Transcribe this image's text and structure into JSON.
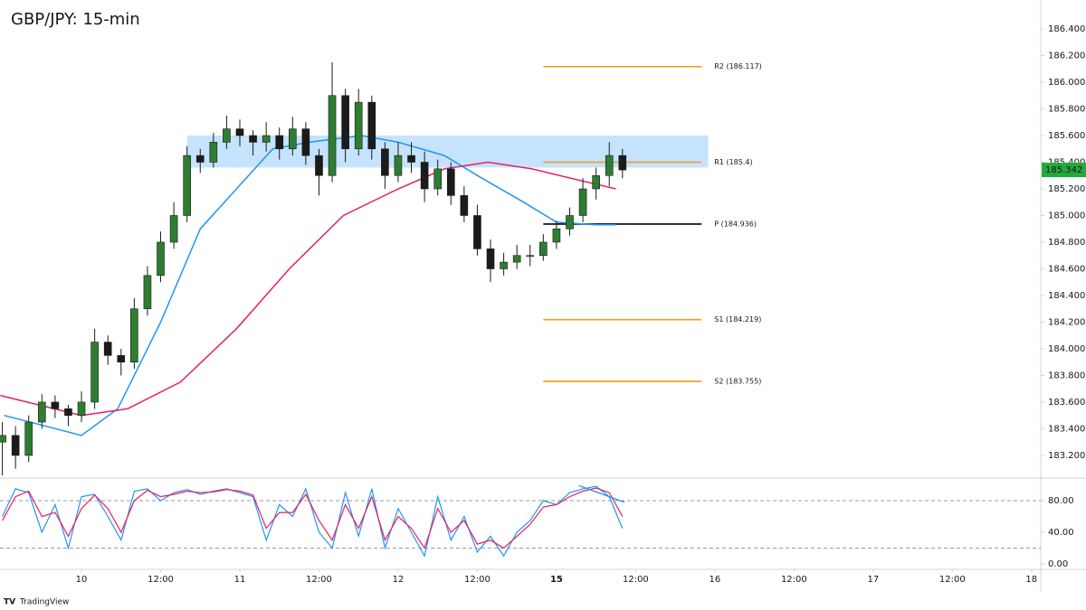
{
  "chart_data": [
    {
      "type": "candlestick",
      "title": "GBP/JPY: 15-min",
      "x": [
        -12,
        -10,
        -8,
        -6,
        -4,
        -2,
        0,
        2,
        4,
        6,
        8,
        10,
        12,
        14,
        16,
        18,
        20,
        22,
        24,
        26,
        28,
        30,
        32,
        34,
        36,
        38,
        40,
        42,
        44,
        46,
        48,
        50,
        52,
        54,
        56,
        58,
        60,
        62,
        64,
        66,
        68,
        70,
        72,
        74,
        76,
        78,
        80,
        82
      ],
      "open": [
        183.3,
        183.35,
        183.2,
        183.45,
        183.6,
        183.55,
        183.5,
        183.6,
        184.05,
        183.95,
        183.9,
        184.3,
        184.55,
        184.8,
        185.0,
        185.45,
        185.4,
        185.55,
        185.65,
        185.6,
        185.55,
        185.6,
        185.5,
        185.65,
        185.45,
        185.3,
        185.9,
        185.5,
        185.85,
        185.5,
        185.3,
        185.45,
        185.4,
        185.2,
        185.35,
        185.15,
        185.0,
        184.75,
        184.6,
        184.65,
        184.7,
        184.7,
        184.8,
        184.9,
        185.0,
        185.2,
        185.3,
        185.45
      ],
      "high": [
        183.45,
        183.42,
        183.5,
        183.66,
        183.65,
        183.58,
        183.68,
        184.15,
        184.1,
        184.0,
        184.38,
        184.62,
        184.88,
        185.1,
        185.52,
        185.5,
        185.62,
        185.75,
        185.72,
        185.64,
        185.7,
        185.66,
        185.74,
        185.7,
        185.5,
        186.15,
        185.95,
        185.95,
        185.9,
        185.55,
        185.55,
        185.55,
        185.48,
        185.42,
        185.4,
        185.22,
        185.08,
        184.82,
        184.72,
        184.78,
        184.78,
        184.86,
        184.96,
        185.06,
        185.28,
        185.36,
        185.55,
        185.5
      ],
      "low": [
        183.05,
        183.1,
        183.15,
        183.4,
        183.48,
        183.42,
        183.45,
        183.55,
        183.88,
        183.8,
        183.85,
        184.25,
        184.5,
        184.75,
        184.95,
        185.32,
        185.36,
        185.5,
        185.52,
        185.45,
        185.48,
        185.42,
        185.45,
        185.38,
        185.15,
        185.25,
        185.4,
        185.45,
        185.42,
        185.2,
        185.25,
        185.32,
        185.1,
        185.15,
        185.08,
        184.95,
        184.7,
        184.5,
        184.55,
        184.6,
        184.62,
        184.66,
        184.75,
        184.85,
        184.95,
        185.12,
        185.22,
        185.28
      ],
      "close": [
        183.35,
        183.2,
        183.45,
        183.6,
        183.55,
        183.5,
        183.6,
        184.05,
        183.95,
        183.9,
        184.3,
        184.55,
        184.8,
        185.0,
        185.45,
        185.4,
        185.55,
        185.65,
        185.6,
        185.55,
        185.6,
        185.5,
        185.65,
        185.45,
        185.3,
        185.9,
        185.5,
        185.85,
        185.5,
        185.3,
        185.45,
        185.4,
        185.2,
        185.35,
        185.15,
        185.0,
        184.75,
        184.6,
        184.65,
        184.7,
        184.7,
        184.8,
        184.9,
        185.0,
        185.2,
        185.3,
        185.45,
        185.342
      ],
      "up_color": "#2e7d32",
      "down_color": "#1b1b1b",
      "series": [
        {
          "color": "#2196f3",
          "x": [
            -11.7,
            0,
            5.5,
            12,
            18,
            23.5,
            29,
            34.5,
            42.5,
            48,
            55,
            60,
            67,
            72,
            78,
            81
          ],
          "values": [
            183.5,
            183.35,
            183.55,
            184.2,
            184.9,
            185.2,
            185.5,
            185.55,
            185.6,
            185.55,
            185.45,
            185.3,
            185.1,
            184.95,
            184.93,
            184.93
          ]
        },
        {
          "color": "#e91e63",
          "x": [
            -12.3,
            0,
            7,
            15,
            23.5,
            31.5,
            39.7,
            48,
            55,
            61.6,
            68.3,
            75,
            81
          ],
          "values": [
            183.65,
            183.5,
            183.55,
            183.75,
            184.15,
            184.6,
            185.0,
            185.2,
            185.35,
            185.4,
            185.35,
            185.27,
            185.2
          ]
        }
      ],
      "zone": {
        "from": 16,
        "to": 95,
        "low": 185.36,
        "high": 185.6,
        "color": "#bbdefb"
      },
      "pivots": [
        {
          "value": 186.117,
          "label": "R2 (186.117)",
          "color": "#f39c12",
          "from": 70,
          "to": 94
        },
        {
          "value": 185.4,
          "label": "R1 (185.4)",
          "color": "#f39c12",
          "from": 70,
          "to": 94
        },
        {
          "value": 184.936,
          "label": "P (184.936)",
          "color": "#000000",
          "from": 70,
          "to": 94
        },
        {
          "value": 184.219,
          "label": "S1 (184.219)",
          "color": "#f39c12",
          "from": 70,
          "to": 94
        },
        {
          "value": 183.755,
          "label": "S2 (183.755)",
          "color": "#f39c12",
          "from": 70,
          "to": 94
        }
      ],
      "last_price": 185.342,
      "last_color": "#22ab3b",
      "xlim": [
        -12.35,
        145.4
      ],
      "xticks": [
        {
          "value": 0,
          "label": "10"
        },
        {
          "value": 12,
          "label": "12:00"
        },
        {
          "value": 24,
          "label": "11"
        },
        {
          "value": 36,
          "label": "12:00"
        },
        {
          "value": 48,
          "label": "12"
        },
        {
          "value": 60,
          "label": "12:00"
        },
        {
          "value": 72,
          "label": "15"
        },
        {
          "value": 84,
          "label": "12:00"
        },
        {
          "value": 96,
          "label": "16"
        },
        {
          "value": 108,
          "label": "12:00"
        },
        {
          "value": 120,
          "label": "17"
        },
        {
          "value": 132,
          "label": "12:00"
        },
        {
          "value": 144,
          "label": "18"
        }
      ],
      "ylim": [
        183.037,
        186.617
      ],
      "yticks": [
        {
          "value": 183.2,
          "label": "183.200"
        },
        {
          "value": 183.4,
          "label": "183.400"
        },
        {
          "value": 183.6,
          "label": "183.600"
        },
        {
          "value": 183.8,
          "label": "183.800"
        },
        {
          "value": 184.0,
          "label": "184.000"
        },
        {
          "value": 184.2,
          "label": "184.200"
        },
        {
          "value": 184.4,
          "label": "184.400"
        },
        {
          "value": 184.6,
          "label": "184.600"
        },
        {
          "value": 184.8,
          "label": "184.800"
        },
        {
          "value": 185.0,
          "label": "185.000"
        },
        {
          "value": 185.2,
          "label": "185.200"
        },
        {
          "value": 185.4,
          "label": "185.400"
        },
        {
          "value": 185.6,
          "label": "185.600"
        },
        {
          "value": 185.8,
          "label": "185.800"
        },
        {
          "value": 186.0,
          "label": "186.000"
        },
        {
          "value": 186.2,
          "label": "186.200"
        },
        {
          "value": 186.4,
          "label": "186.400"
        }
      ]
    },
    {
      "type": "line",
      "x": [
        -12,
        -10,
        -8,
        -6,
        -4,
        -2,
        0,
        2,
        4,
        6,
        8,
        10,
        12,
        14,
        16,
        18,
        20,
        22,
        24,
        26,
        28,
        30,
        32,
        34,
        36,
        38,
        40,
        42,
        44,
        46,
        48,
        50,
        52,
        54,
        56,
        58,
        60,
        62,
        64,
        66,
        68,
        70,
        72,
        74,
        76,
        78,
        80,
        82
      ],
      "series": [
        {
          "color": "#2196f3",
          "values": [
            60,
            95,
            90,
            40,
            75,
            20,
            85,
            88,
            60,
            30,
            92,
            95,
            80,
            90,
            94,
            88,
            92,
            95,
            90,
            85,
            30,
            75,
            60,
            95,
            40,
            20,
            90,
            35,
            95,
            20,
            70,
            40,
            10,
            85,
            30,
            60,
            15,
            35,
            10,
            40,
            55,
            80,
            75,
            90,
            95,
            98,
            85,
            45
          ]
        },
        {
          "color": "#e91e63",
          "values": [
            55,
            85,
            92,
            60,
            65,
            35,
            70,
            87,
            70,
            40,
            80,
            93,
            85,
            88,
            92,
            90,
            91,
            94,
            92,
            87,
            45,
            65,
            65,
            88,
            55,
            30,
            75,
            45,
            85,
            30,
            60,
            45,
            20,
            70,
            40,
            55,
            25,
            30,
            20,
            35,
            50,
            72,
            75,
            85,
            92,
            96,
            90,
            60
          ]
        }
      ],
      "levels": [
        80,
        20
      ],
      "trendline": {
        "x": [
          75.4,
          82.3
        ],
        "values": [
          99,
          78
        ],
        "color": "#2196f3"
      },
      "xlim": [
        -12.35,
        145.4
      ],
      "ylim": [
        -4.6,
        107.4
      ],
      "yticks": [
        {
          "value": 0,
          "label": "0.00"
        },
        {
          "value": 40,
          "label": "40.00"
        },
        {
          "value": 80,
          "label": "80.00"
        }
      ]
    }
  ],
  "footer": "TradingView"
}
